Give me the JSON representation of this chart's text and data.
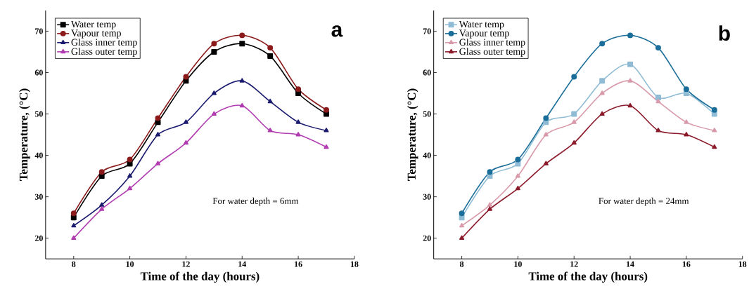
{
  "chart_data": [
    {
      "type": "line",
      "xlabel": "Time of the day (hours)",
      "ylabel": "Temperature, (°C)",
      "annotations": [
        "a",
        "For water depth = 6mm"
      ],
      "x": [
        8,
        9,
        10,
        11,
        12,
        13,
        14,
        15,
        16,
        17
      ],
      "xlim": [
        7,
        18
      ],
      "xticks": [
        8,
        10,
        12,
        14,
        16,
        18
      ],
      "ylim": [
        15,
        75
      ],
      "yticks": [
        20,
        30,
        40,
        50,
        60,
        70
      ],
      "legend": "top left",
      "grid": false,
      "series": [
        {
          "name": "Water temp",
          "color": "#000000",
          "marker": "square",
          "values": [
            25,
            35,
            38,
            48,
            58,
            65,
            67,
            64,
            55,
            50
          ]
        },
        {
          "name": "Vapour temp",
          "color": "#8b1a1a",
          "marker": "circle",
          "values": [
            26,
            36,
            39,
            49,
            59,
            67,
            69,
            66,
            56,
            51
          ]
        },
        {
          "name": "Glass inner temp",
          "color": "#1a1a6e",
          "marker": "triangle",
          "values": [
            23,
            28,
            35,
            45,
            48,
            55,
            58,
            53,
            48,
            46
          ]
        },
        {
          "name": "Glass outer temp",
          "color": "#b03cb0",
          "marker": "triangle",
          "values": [
            20,
            27,
            32,
            38,
            43,
            50,
            52,
            46,
            45,
            42
          ]
        }
      ]
    },
    {
      "type": "line",
      "xlabel": "Time of the day (hours)",
      "ylabel": "Temperature, (°C)",
      "annotations": [
        "b",
        "For water depth = 24mm"
      ],
      "x": [
        8,
        9,
        10,
        11,
        12,
        13,
        14,
        15,
        16,
        17
      ],
      "xlim": [
        7,
        18
      ],
      "xticks": [
        8,
        10,
        12,
        14,
        16,
        18
      ],
      "ylim": [
        15,
        75
      ],
      "yticks": [
        20,
        30,
        40,
        50,
        60,
        70
      ],
      "legend": "top left",
      "grid": false,
      "series": [
        {
          "name": "Water temp",
          "color": "#8fbcd4",
          "marker": "square",
          "values": [
            25,
            35,
            38,
            48,
            50,
            58,
            62,
            54,
            55,
            50
          ]
        },
        {
          "name": "Vapour temp",
          "color": "#1a6e99",
          "marker": "circle",
          "values": [
            26,
            36,
            39,
            49,
            59,
            67,
            69,
            66,
            56,
            51
          ]
        },
        {
          "name": "Glass inner temp",
          "color": "#d89aaa",
          "marker": "triangle",
          "values": [
            23,
            28,
            35,
            45,
            48,
            55,
            58,
            53,
            48,
            46
          ]
        },
        {
          "name": "Glass outer temp",
          "color": "#8b1a2a",
          "marker": "triangle",
          "values": [
            20,
            27,
            32,
            38,
            43,
            50,
            52,
            46,
            45,
            42
          ]
        }
      ]
    }
  ]
}
